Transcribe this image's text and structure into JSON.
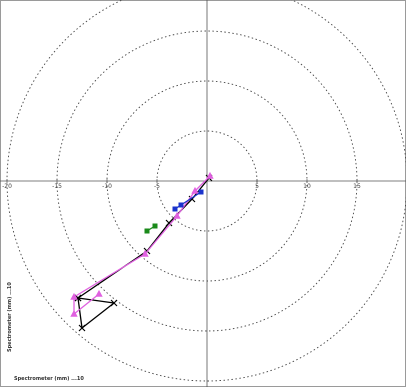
{
  "chart_data": {
    "type": "scatter",
    "coordinate_system": "polar-cartesian",
    "title": "",
    "xlabel": "Spectrometer (mm) ...10",
    "ylabel": "Spectrometer (mm) ...10",
    "xlim": [
      -21,
      21
    ],
    "ylim": [
      -20.5,
      19
    ],
    "rings": [
      5,
      10,
      15,
      20
    ],
    "x_tick_labels": [
      "-20",
      "-15",
      "-10",
      "-5",
      "5",
      "10",
      "15"
    ],
    "x_tick_values": [
      -20,
      -15,
      -10,
      -5,
      5,
      10,
      15
    ],
    "grid": "dotted rings and crosshair axes",
    "series": [
      {
        "color": "#000000",
        "marker": "x",
        "points": [
          {
            "x": 0.2,
            "y": 0.3
          },
          {
            "x": -1.5,
            "y": -1.8
          },
          {
            "x": -3.8,
            "y": -4.2
          },
          {
            "x": -6.0,
            "y": -7.0
          },
          {
            "x": -12.9,
            "y": -11.7
          },
          {
            "x": -12.5,
            "y": -14.7
          },
          {
            "x": -9.3,
            "y": -12.2
          },
          {
            "x": -12.9,
            "y": -11.7
          }
        ]
      },
      {
        "color": "#e060e0",
        "marker": "triangle",
        "points": [
          {
            "x": 0.3,
            "y": 0.5
          },
          {
            "x": -1.2,
            "y": -1.0
          },
          {
            "x": -3.0,
            "y": -3.5
          },
          {
            "x": -6.2,
            "y": -7.3
          },
          {
            "x": -13.3,
            "y": -11.6
          },
          {
            "x": -13.3,
            "y": -13.3
          },
          {
            "x": -10.8,
            "y": -11.3
          }
        ]
      },
      {
        "color": "#1a33cc",
        "marker": "square",
        "points": [
          {
            "x": -0.6,
            "y": -1.1
          },
          {
            "x": -2.6,
            "y": -2.4
          },
          {
            "x": -3.2,
            "y": -2.8
          }
        ]
      },
      {
        "color": "#1a8a1a",
        "marker": "square",
        "points": [
          {
            "x": -5.2,
            "y": -4.5
          },
          {
            "x": -6.0,
            "y": -5.0
          }
        ]
      }
    ]
  }
}
